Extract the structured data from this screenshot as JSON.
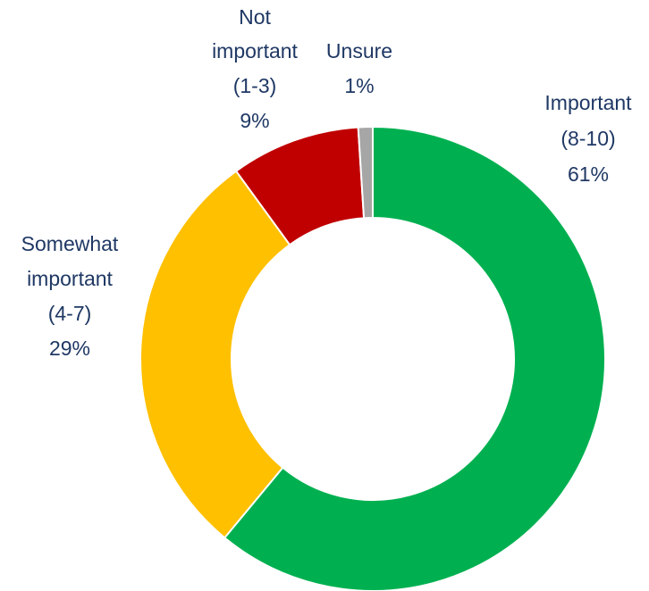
{
  "chart_data": {
    "type": "pie",
    "variant": "donut",
    "slices": [
      {
        "lines": [
          "Important",
          "(8-10)",
          "61%"
        ],
        "value": 61,
        "color": "#00b050"
      },
      {
        "lines": [
          "Somewhat",
          "important",
          "(4-7)",
          "29%"
        ],
        "value": 29,
        "color": "#ffc000"
      },
      {
        "lines": [
          "Not",
          "important",
          "(1-3)",
          "9%"
        ],
        "value": 9,
        "color": "#c00000"
      },
      {
        "lines": [
          "Unsure",
          "1%"
        ],
        "value": 1,
        "color": "#a6a6a6"
      }
    ],
    "colors": {
      "label_text": "#1f3864",
      "background": "#ffffff"
    }
  }
}
